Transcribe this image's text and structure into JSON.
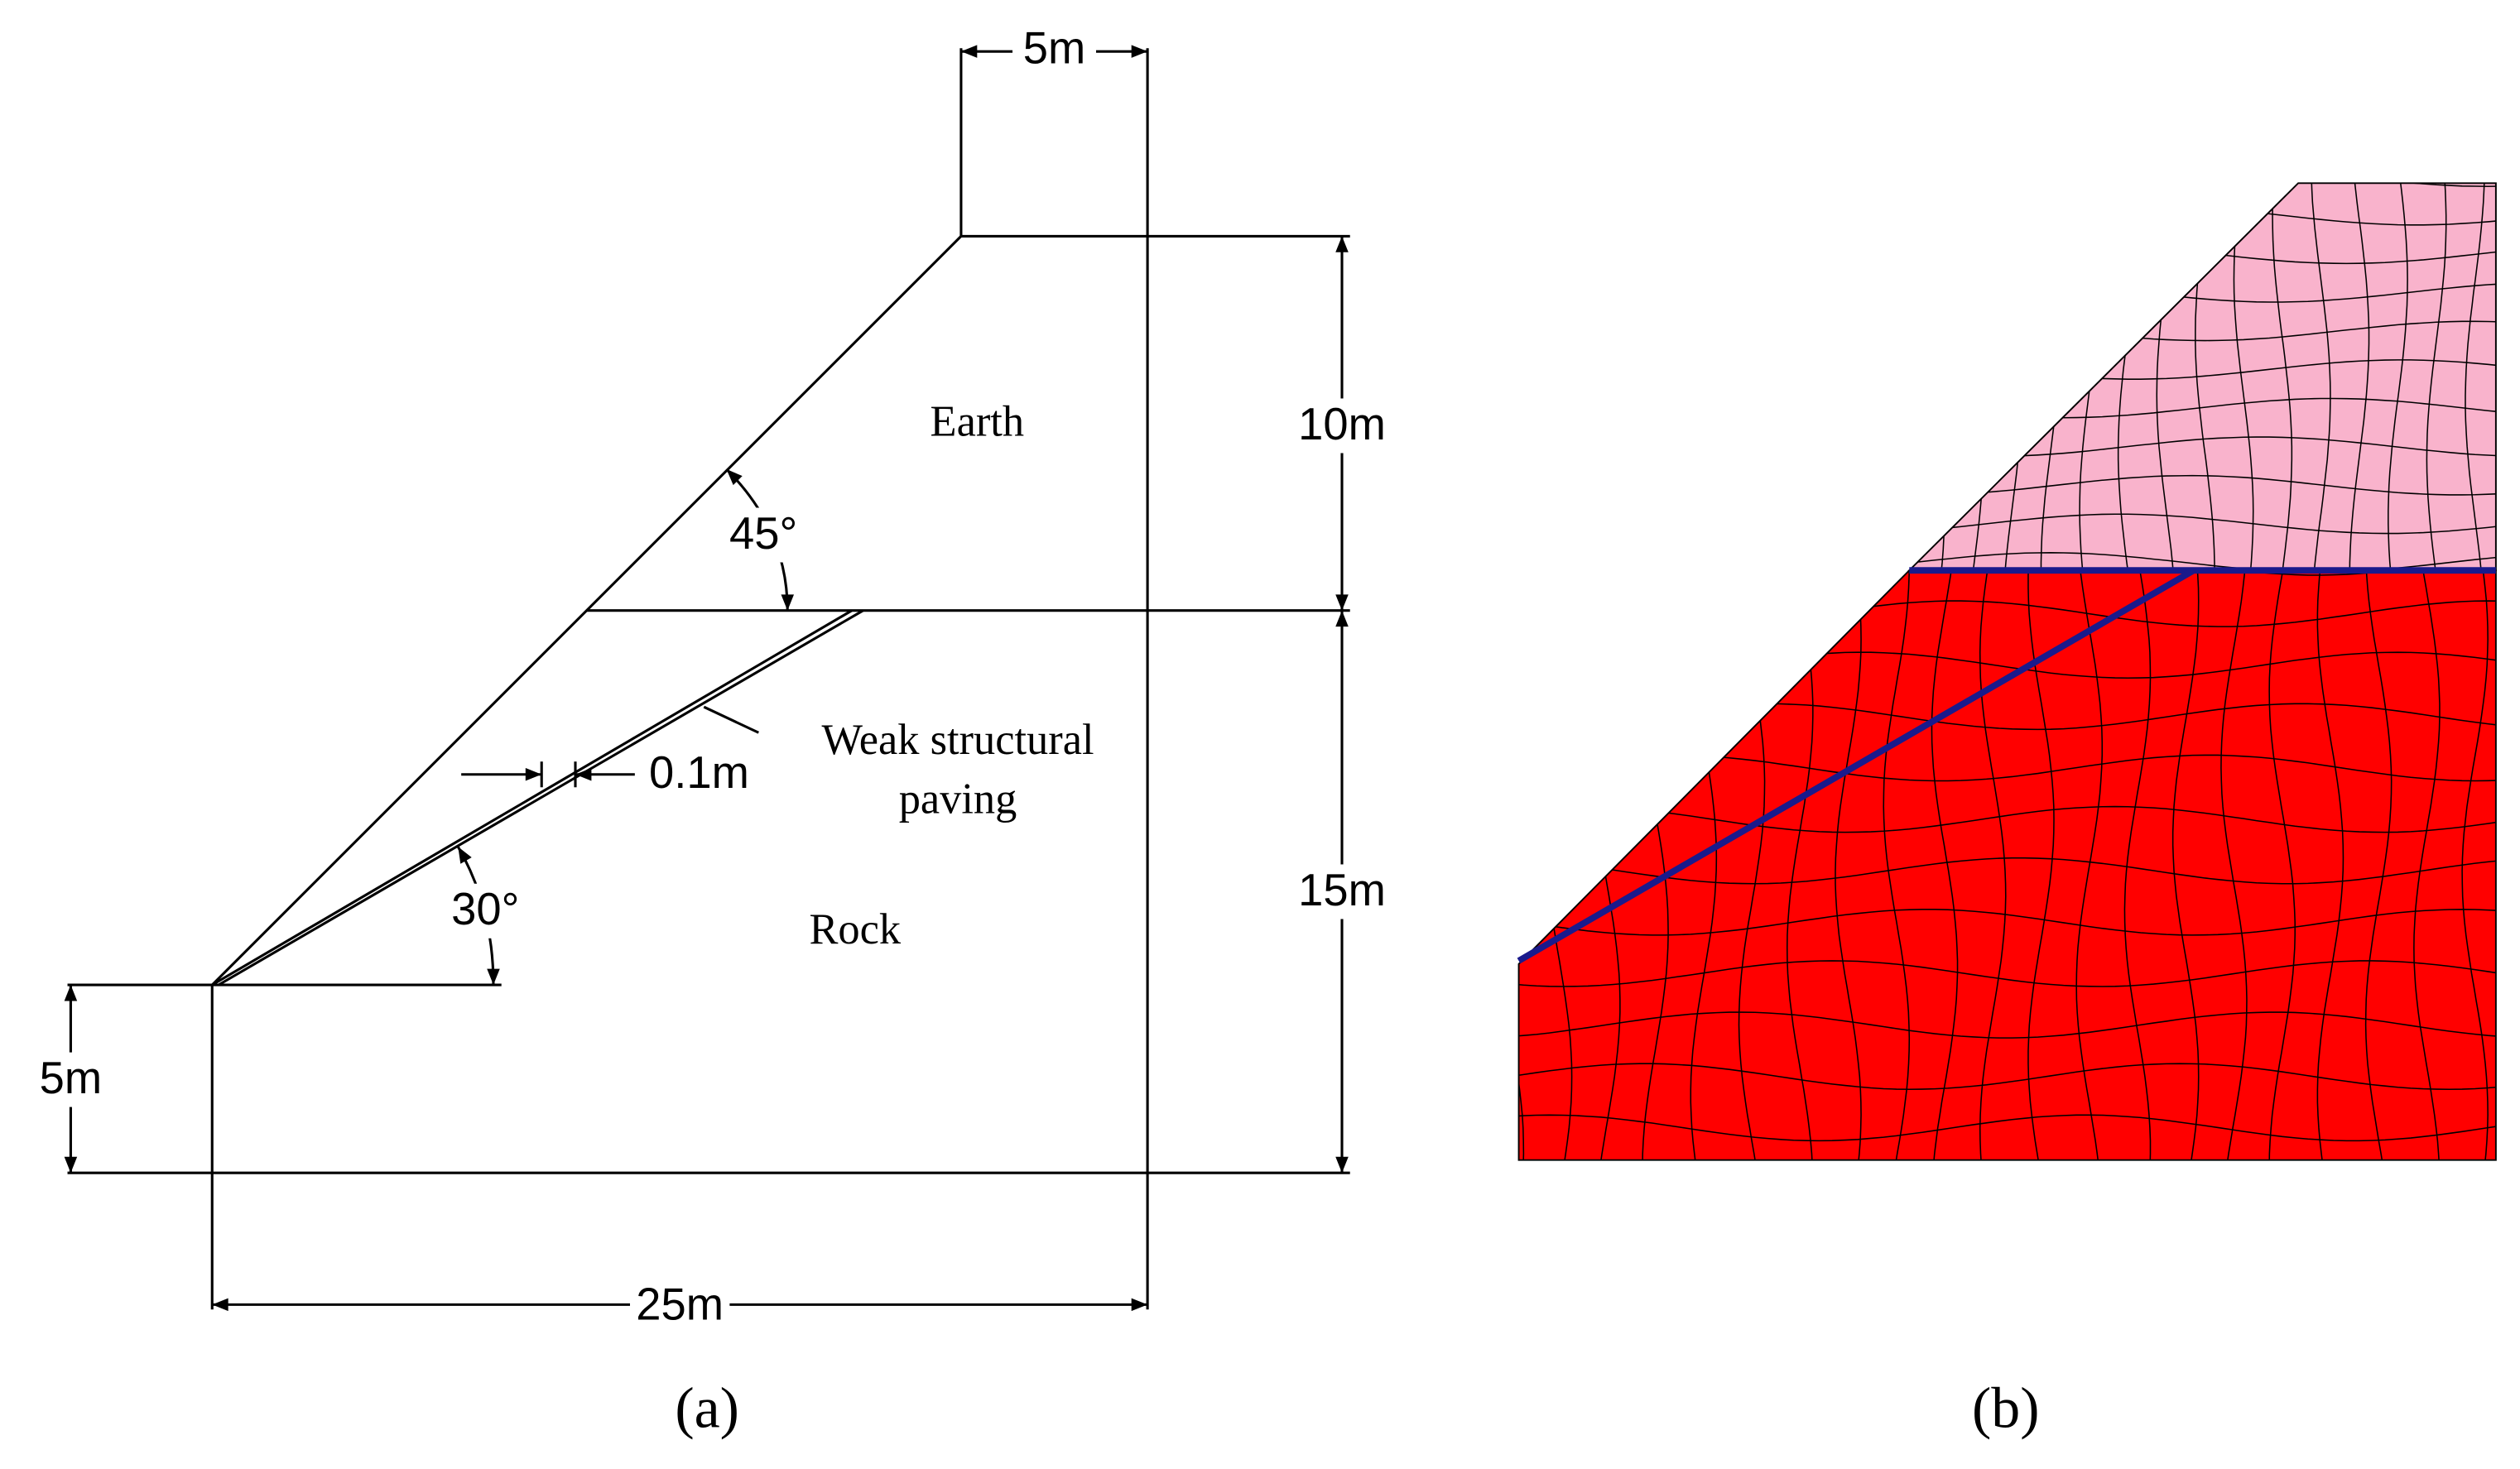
{
  "panel_a": {
    "dimensions": {
      "top_width": "5m",
      "earth_height": "10m",
      "rock_height": "15m",
      "toe_height": "5m",
      "base_width": "25m",
      "layer_thickness": "0.1m"
    },
    "angles": {
      "slope": "45°",
      "layer": "30°"
    },
    "labels": {
      "earth": "Earth",
      "rock": "Rock",
      "weak_layer": [
        "Weak structural",
        "paving"
      ]
    },
    "caption": "(a)"
  },
  "panel_b": {
    "caption": "(b)"
  }
}
